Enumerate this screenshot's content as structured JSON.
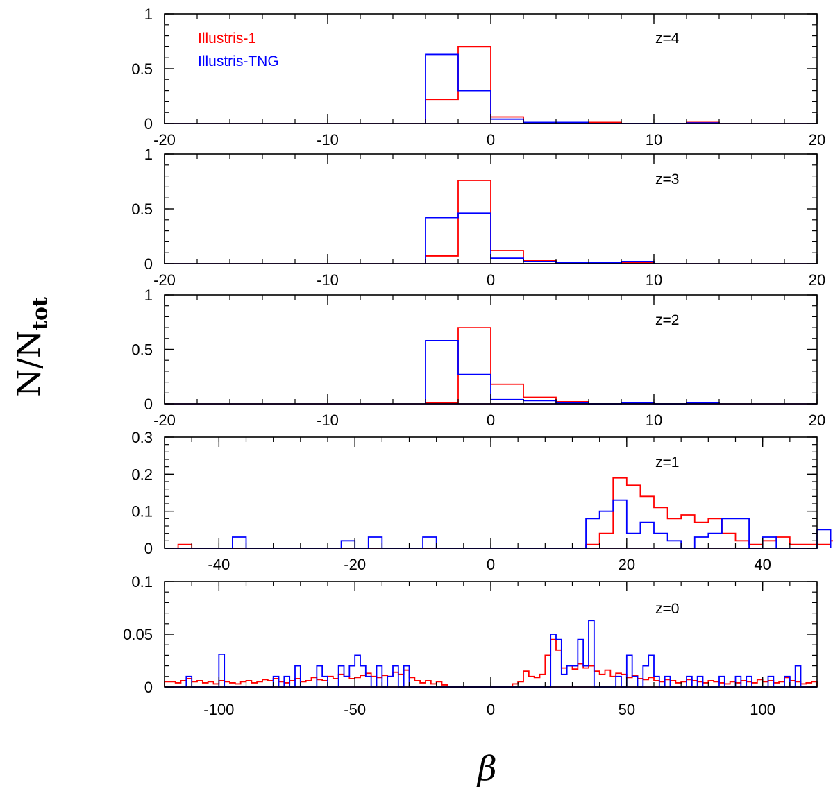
{
  "figure": {
    "ylabel_main": "N/N",
    "ylabel_sub": "tot",
    "xlabel": "β"
  },
  "legend": {
    "entries": [
      {
        "label": "Illustris-1",
        "color": "#ff0000"
      },
      {
        "label": "Illustris-TNG",
        "color": "#0000ff"
      }
    ]
  },
  "colors": {
    "illustris1": "#ff0000",
    "tng": "#0000ff",
    "axis": "#000000"
  },
  "chart_data": [
    {
      "type": "line",
      "title": "z=4",
      "xlim": [
        -20,
        20
      ],
      "ylim": [
        0,
        1
      ],
      "xticks": [
        -20,
        -10,
        0,
        10,
        20
      ],
      "yticks": [
        0,
        0.5,
        1
      ],
      "xticklabels": [
        "-20",
        "-10",
        "0",
        "10",
        "20"
      ],
      "yticklabels": [
        "0",
        "0.5",
        "1"
      ],
      "xminor": 2,
      "yminor": 0.1,
      "series": [
        {
          "name": "Illustris-1",
          "edges": [
            -4,
            -2,
            0,
            2,
            4,
            6,
            8,
            10,
            12,
            14
          ],
          "values": [
            0.22,
            0.7,
            0.06,
            0.01,
            0.01,
            0.01,
            0.0,
            0.0,
            0.01
          ]
        },
        {
          "name": "Illustris-TNG",
          "edges": [
            -4,
            -2,
            0,
            2,
            4,
            6,
            8,
            10,
            12,
            14
          ],
          "values": [
            0.63,
            0.3,
            0.04,
            0.01,
            0.01,
            0.0,
            0.0,
            0.0,
            0.005
          ]
        }
      ]
    },
    {
      "type": "line",
      "title": "z=3",
      "xlim": [
        -20,
        20
      ],
      "ylim": [
        0,
        1
      ],
      "xticks": [
        -20,
        -10,
        0,
        10,
        20
      ],
      "yticks": [
        0,
        0.5,
        1
      ],
      "xticklabels": [
        "-20",
        "-10",
        "0",
        "10",
        "20"
      ],
      "yticklabels": [
        "0",
        "0.5",
        "1"
      ],
      "xminor": 2,
      "yminor": 0.1,
      "series": [
        {
          "name": "Illustris-1",
          "edges": [
            -4,
            -2,
            0,
            2,
            4,
            6,
            8,
            10
          ],
          "values": [
            0.07,
            0.76,
            0.12,
            0.03,
            0.01,
            0.01,
            0.01
          ]
        },
        {
          "name": "Illustris-TNG",
          "edges": [
            -4,
            -2,
            0,
            2,
            4,
            6,
            8,
            10
          ],
          "values": [
            0.42,
            0.46,
            0.05,
            0.02,
            0.01,
            0.01,
            0.02
          ]
        }
      ]
    },
    {
      "type": "line",
      "title": "z=2",
      "xlim": [
        -20,
        20
      ],
      "ylim": [
        0,
        1
      ],
      "xticks": [
        -20,
        -10,
        0,
        10,
        20
      ],
      "yticks": [
        0,
        0.5,
        1
      ],
      "xticklabels": [
        "-20",
        "-10",
        "0",
        "10",
        "20"
      ],
      "yticklabels": [
        "0",
        "0.5",
        "1"
      ],
      "xminor": 2,
      "yminor": 0.1,
      "series": [
        {
          "name": "Illustris-1",
          "edges": [
            -4,
            -2,
            0,
            2,
            4,
            6,
            8,
            10,
            12,
            14
          ],
          "values": [
            0.01,
            0.7,
            0.18,
            0.06,
            0.02,
            0.0,
            0.01,
            0.0,
            0.01
          ]
        },
        {
          "name": "Illustris-TNG",
          "edges": [
            -4,
            -2,
            0,
            2,
            4,
            6,
            8,
            10,
            12,
            14
          ],
          "values": [
            0.58,
            0.27,
            0.04,
            0.03,
            0.01,
            0.0,
            0.01,
            0.0,
            0.01
          ]
        }
      ]
    },
    {
      "type": "line",
      "title": "z=1",
      "xlim": [
        -48,
        48
      ],
      "ylim": [
        0,
        0.3
      ],
      "xticks": [
        -40,
        -20,
        0,
        20,
        40
      ],
      "yticks": [
        0,
        0.1,
        0.2,
        0.3
      ],
      "xticklabels": [
        "-40",
        "-20",
        "0",
        "20",
        "40"
      ],
      "yticklabels": [
        "0",
        "0.1",
        "0.2",
        "0.3"
      ],
      "xminor": 4,
      "yminor": 0.02,
      "series": [
        {
          "name": "Illustris-1",
          "bin_start": -46,
          "bin_width": 2,
          "values": [
            0.01,
            0,
            0,
            0,
            0,
            0,
            0,
            0,
            0,
            0,
            0,
            0,
            0,
            0,
            0,
            0,
            0,
            0,
            0,
            0,
            0,
            0,
            0,
            0,
            0,
            0,
            0,
            0,
            0,
            0,
            0.01,
            0.04,
            0.19,
            0.17,
            0.14,
            0.11,
            0.08,
            0.09,
            0.07,
            0.08,
            0.04,
            0.02,
            0.01,
            0.02,
            0.03,
            0.01,
            0.01,
            0.01,
            0.02
          ]
        },
        {
          "name": "Illustris-TNG",
          "bin_start": -48,
          "bin_width": 2,
          "values": [
            0,
            0,
            0,
            0,
            0,
            0.03,
            0,
            0,
            0,
            0,
            0,
            0,
            0,
            0.02,
            0,
            0.03,
            0,
            0,
            0,
            0.03,
            0,
            0,
            0,
            0,
            0,
            0,
            0,
            0,
            0,
            0,
            0,
            0.08,
            0.1,
            0.13,
            0.04,
            0.07,
            0.04,
            0.02,
            0,
            0.03,
            0.04,
            0.08,
            0.08,
            0,
            0.03,
            0,
            0,
            0,
            0.05
          ]
        }
      ]
    },
    {
      "type": "line",
      "title": "z=0",
      "xlim": [
        -120,
        120
      ],
      "ylim": [
        0,
        0.1
      ],
      "xticks": [
        -100,
        -50,
        0,
        50,
        100
      ],
      "yticks": [
        0,
        0.05,
        0.1
      ],
      "xticklabels": [
        "-100",
        "-50",
        "0",
        "50",
        "100"
      ],
      "yticklabels": [
        "0",
        "0.05",
        "0.1"
      ],
      "xminor": 10,
      "yminor": 0.01,
      "series": [
        {
          "name": "Illustris-1",
          "bin_start": -120,
          "bin_width": 2,
          "values": [
            0.005,
            0.005,
            0.004,
            0.006,
            0.008,
            0.005,
            0.006,
            0.004,
            0.005,
            0.003,
            0.006,
            0.005,
            0.004,
            0.003,
            0.005,
            0.006,
            0.004,
            0.005,
            0.007,
            0.006,
            0.008,
            0.005,
            0.004,
            0.006,
            0.008,
            0.005,
            0.006,
            0.009,
            0.007,
            0.006,
            0.01,
            0.008,
            0.012,
            0.01,
            0.008,
            0.009,
            0.011,
            0.013,
            0.01,
            0.009,
            0.011,
            0.01,
            0.014,
            0.012,
            0.016,
            0.009,
            0.006,
            0.004,
            0.006,
            0.003,
            0.005,
            0.002,
            0,
            0,
            0,
            0,
            0,
            0,
            0,
            0,
            0,
            0,
            0,
            0,
            0.003,
            0.005,
            0.015,
            0.01,
            0.009,
            0.012,
            0.03,
            0.045,
            0.035,
            0.018,
            0.02,
            0.017,
            0.022,
            0.018,
            0.02,
            0.015,
            0.012,
            0.016,
            0.01,
            0.013,
            0.012,
            0.009,
            0.011,
            0.008,
            0.007,
            0.009,
            0.006,
            0.005,
            0.007,
            0.006,
            0.004,
            0.005,
            0.007,
            0.006,
            0.005,
            0.004,
            0.006,
            0.005,
            0.004,
            0.003,
            0.005,
            0.004,
            0.006,
            0.005,
            0.004,
            0.007,
            0.005,
            0.006,
            0.004,
            0.005,
            0.009,
            0.006,
            0.005,
            0.003,
            0.004,
            0.005
          ]
        },
        {
          "name": "Illustris-TNG",
          "bin_start": -120,
          "bin_width": 2,
          "values": [
            0,
            0,
            0,
            0,
            0.01,
            0,
            0,
            0,
            0,
            0,
            0.031,
            0,
            0,
            0,
            0,
            0,
            0,
            0,
            0,
            0,
            0.01,
            0,
            0.01,
            0,
            0.02,
            0,
            0,
            0,
            0.02,
            0.01,
            0,
            0,
            0.02,
            0.01,
            0.02,
            0.03,
            0.02,
            0.01,
            0,
            0.02,
            0,
            0.01,
            0.02,
            0,
            0.02,
            0,
            0,
            0,
            0,
            0,
            0,
            0,
            0,
            0,
            0,
            0,
            0,
            0,
            0,
            0,
            0,
            0,
            0,
            0,
            0,
            0,
            0,
            0,
            0,
            0,
            0,
            0.05,
            0.045,
            0.012,
            0.02,
            0.02,
            0.045,
            0.02,
            0.063,
            0,
            0,
            0,
            0,
            0.01,
            0,
            0.03,
            0.01,
            0,
            0.02,
            0.03,
            0.01,
            0,
            0.01,
            0,
            0,
            0,
            0.01,
            0,
            0.01,
            0,
            0,
            0,
            0.01,
            0,
            0,
            0.01,
            0,
            0.01,
            0,
            0,
            0,
            0.01,
            0,
            0,
            0.01,
            0,
            0.02,
            0,
            0,
            0
          ]
        }
      ]
    }
  ]
}
